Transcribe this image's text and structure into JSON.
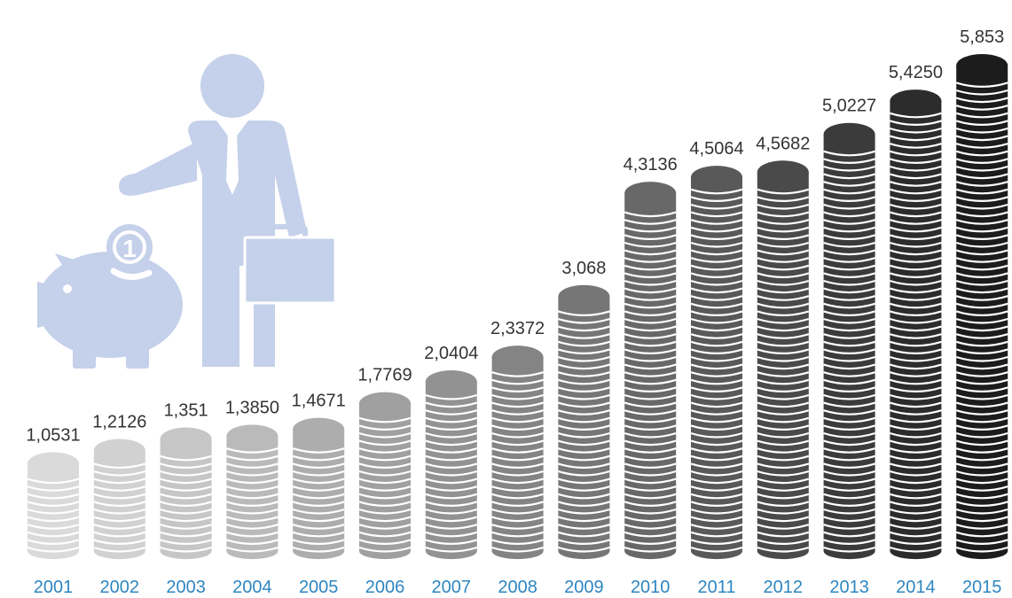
{
  "chart_data": {
    "type": "bar",
    "style": "stacked-coins pictograph",
    "title": "",
    "xlabel": "",
    "ylabel": "",
    "categories": [
      "2001",
      "2002",
      "2003",
      "2004",
      "2005",
      "2006",
      "2007",
      "2008",
      "2009",
      "2010",
      "2011",
      "2012",
      "2013",
      "2014",
      "2015"
    ],
    "values": [
      1.0531,
      1.2126,
      1.351,
      1.385,
      1.4671,
      1.7769,
      2.0404,
      2.3372,
      3.068,
      4.3136,
      4.5064,
      4.5682,
      5.0227,
      5.425,
      5.853
    ],
    "value_labels": [
      "1,0531",
      "1,2126",
      "1,351",
      "1,3850",
      "1,4671",
      "1,7769",
      "2,0404",
      "2,3372",
      "3,068",
      "4,3136",
      "4,5064",
      "4,5682",
      "5,0227",
      "5,4250",
      "5,853"
    ],
    "ylim": [
      0,
      5.853
    ],
    "grid": false,
    "legend": "none",
    "colors": {
      "year_labels": "#2e86c1",
      "value_labels": "#333333",
      "coin_light": "#dadada",
      "coin_dark": "#1c1c1c",
      "illustration": "#c5d0ea"
    }
  },
  "illustration": {
    "icons": [
      "businessman-icon",
      "piggy-bank-icon",
      "coin-icon"
    ],
    "coin_glyph": "1"
  }
}
